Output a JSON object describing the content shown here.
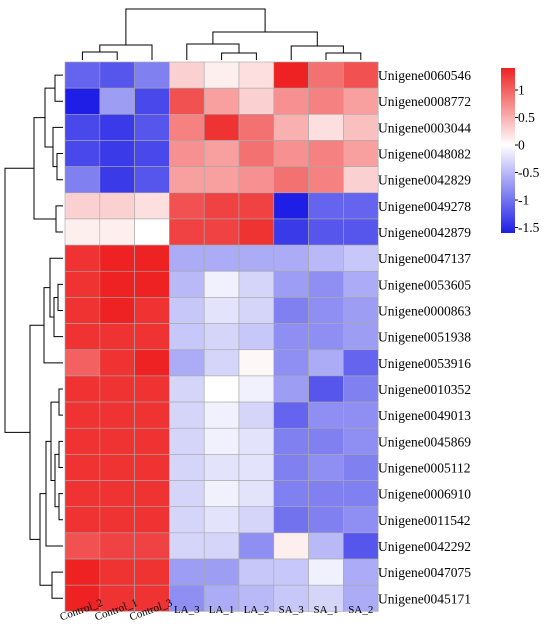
{
  "chart_data": {
    "type": "heatmap",
    "title": "",
    "xlabel": "",
    "ylabel": "",
    "columns": [
      "Control_2",
      "Control_1",
      "Control_3",
      "LA_3",
      "LA_1",
      "LA_2",
      "SA_3",
      "SA_1",
      "SA_2"
    ],
    "rows": [
      "Unigene0060546",
      "Unigene0008772",
      "Unigene0003044",
      "Unigene0048082",
      "Unigene0042829",
      "Unigene0049278",
      "Unigene0042879",
      "Unigene0047137",
      "Unigene0053605",
      "Unigene0000863",
      "Unigene0051938",
      "Unigene0053916",
      "Unigene0010352",
      "Unigene0049013",
      "Unigene0045869",
      "Unigene0005112",
      "Unigene0006910",
      "Unigene0011542",
      "Unigene0042292",
      "Unigene0047075",
      "Unigene0045171"
    ],
    "values": [
      [
        -1.1,
        -1.2,
        -0.9,
        0.3,
        0.1,
        0.2,
        1.4,
        0.9,
        1.1
      ],
      [
        -1.6,
        -0.7,
        -1.3,
        1.1,
        0.6,
        0.3,
        0.7,
        0.8,
        0.6
      ],
      [
        -1.3,
        -1.4,
        -1.2,
        0.8,
        1.3,
        0.9,
        0.5,
        0.2,
        0.4
      ],
      [
        -1.3,
        -1.4,
        -1.3,
        0.7,
        0.6,
        0.9,
        0.7,
        0.8,
        0.6
      ],
      [
        -0.9,
        -1.4,
        -1.2,
        0.6,
        0.6,
        0.7,
        0.9,
        0.8,
        0.3
      ],
      [
        0.3,
        0.3,
        0.2,
        1.1,
        1.2,
        1.2,
        -1.6,
        -1.1,
        -1.1
      ],
      [
        0.1,
        0.1,
        0.0,
        1.2,
        1.2,
        1.3,
        -1.4,
        -1.2,
        -1.2
      ],
      [
        1.3,
        1.4,
        1.4,
        -0.6,
        -0.6,
        -0.6,
        -0.6,
        -0.5,
        -0.4
      ],
      [
        1.3,
        1.4,
        1.4,
        -0.5,
        -0.1,
        -0.3,
        -0.7,
        -0.8,
        -0.6
      ],
      [
        1.3,
        1.4,
        1.3,
        -0.4,
        -0.2,
        -0.3,
        -0.9,
        -0.8,
        -0.7
      ],
      [
        1.3,
        1.3,
        1.3,
        -0.4,
        -0.3,
        -0.4,
        -0.8,
        -0.8,
        -0.7
      ],
      [
        1.0,
        1.3,
        1.5,
        -0.6,
        -0.3,
        0.05,
        -0.8,
        -0.6,
        -1.1
      ],
      [
        1.3,
        1.3,
        1.3,
        -0.3,
        0.0,
        -0.1,
        -0.7,
        -1.2,
        -0.9
      ],
      [
        1.3,
        1.3,
        1.3,
        -0.3,
        -0.1,
        -0.3,
        -1.1,
        -0.8,
        -0.8
      ],
      [
        1.3,
        1.3,
        1.3,
        -0.3,
        -0.1,
        -0.2,
        -0.9,
        -0.9,
        -0.8
      ],
      [
        1.3,
        1.3,
        1.3,
        -0.3,
        -0.2,
        -0.2,
        -0.9,
        -0.8,
        -0.9
      ],
      [
        1.3,
        1.3,
        1.3,
        -0.3,
        -0.1,
        -0.2,
        -0.9,
        -0.9,
        -0.9
      ],
      [
        1.3,
        1.3,
        1.3,
        -0.3,
        -0.2,
        -0.3,
        -1.0,
        -0.9,
        -0.8
      ],
      [
        1.1,
        1.2,
        1.2,
        -0.3,
        -0.3,
        -0.8,
        0.1,
        -0.5,
        -1.2
      ],
      [
        1.4,
        1.3,
        1.3,
        -0.7,
        -0.7,
        -0.4,
        -0.4,
        -0.1,
        -0.6
      ],
      [
        1.4,
        1.3,
        1.3,
        -0.8,
        -0.6,
        -0.5,
        -0.4,
        -0.3,
        -0.6
      ]
    ],
    "colorbar": {
      "range": [
        -1.6,
        1.4
      ],
      "ticks": [
        1,
        0.5,
        0,
        -0.5,
        -1,
        -1.5
      ],
      "tick_labels": [
        "1",
        "0.5",
        "0",
        "-0.5",
        "-1",
        "-1.5"
      ],
      "colors": {
        "low": "#1e1ee6",
        "mid": "#ffffff",
        "high": "#ee2222"
      }
    },
    "legend_position": "top-right",
    "grid": true,
    "row_dendrogram": true,
    "column_dendrogram": true
  }
}
